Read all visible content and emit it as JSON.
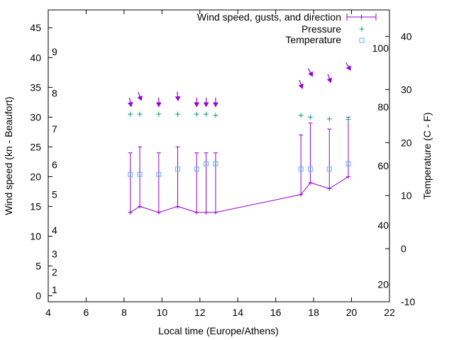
{
  "chart_data": {
    "type": "line",
    "xlabel": "Local time (Europe/Athens)",
    "ylabel": "Wind speed (kn - Beaufort)",
    "y2label": "Temperature (C - F)",
    "xlim": [
      4,
      22
    ],
    "ylim": [
      -1,
      48
    ],
    "y2lim": [
      -10,
      45
    ],
    "x_ticks": [
      "4",
      "6",
      "8",
      "10",
      "12",
      "14",
      "16",
      "18",
      "20",
      "22"
    ],
    "y_ticks": [
      "0",
      "5",
      "10",
      "15",
      "20",
      "25",
      "30",
      "35",
      "40",
      "45"
    ],
    "y2_ticks": [
      "-10",
      "0",
      "10",
      "20",
      "30",
      "40"
    ],
    "beaufort_labels": [
      {
        "label": "1",
        "knots": 1
      },
      {
        "label": "2",
        "knots": 4
      },
      {
        "label": "3",
        "knots": 7
      },
      {
        "label": "4",
        "knots": 11
      },
      {
        "label": "5",
        "knots": 17
      },
      {
        "label": "6",
        "knots": 22
      },
      {
        "label": "7",
        "knots": 28
      },
      {
        "label": "8",
        "knots": 34
      },
      {
        "label": "9",
        "knots": 41
      }
    ],
    "fahrenheit_labels": [
      {
        "label": "20",
        "celsius": -6.7
      },
      {
        "label": "40",
        "celsius": 4.4
      },
      {
        "label": "60",
        "celsius": 15.6
      },
      {
        "label": "80",
        "celsius": 26.7
      },
      {
        "label": "100",
        "celsius": 37.8
      }
    ],
    "legend": [
      "Wind speed, gusts, and direction",
      "Pressure",
      "Temperature"
    ],
    "legend_position": "top-right",
    "colors": {
      "wind": "#9400d3",
      "pressure": "#009e73",
      "temperature": "#56b4e9"
    },
    "series": [
      {
        "name": "Wind speed, gusts, and direction",
        "x": [
          8.33,
          8.83,
          9.83,
          10.83,
          11.83,
          12.33,
          12.83,
          17.33,
          17.83,
          18.83,
          19.83
        ],
        "speed": [
          14,
          15,
          14,
          15,
          14,
          14,
          14,
          17,
          19,
          18,
          20
        ],
        "gust": [
          24,
          25,
          24,
          25,
          24,
          24,
          24,
          27,
          29,
          28,
          30
        ],
        "direction_deg": [
          350,
          340,
          0,
          355,
          0,
          0,
          0,
          340,
          330,
          340,
          330
        ]
      },
      {
        "name": "Pressure",
        "x": [
          8.33,
          8.83,
          9.83,
          10.83,
          11.83,
          12.33,
          12.83,
          17.33,
          17.83,
          18.83,
          19.83
        ],
        "y": [
          30.5,
          30.5,
          30.5,
          30.5,
          30.5,
          30.5,
          30.3,
          30.3,
          30,
          29.7,
          29.6
        ]
      },
      {
        "name": "Temperature",
        "x": [
          8.33,
          8.83,
          9.83,
          10.83,
          11.83,
          12.33,
          12.83,
          17.33,
          17.83,
          18.83,
          19.83
        ],
        "y": [
          14,
          14,
          14,
          15,
          15,
          16,
          16,
          15,
          15,
          15,
          16
        ]
      }
    ]
  }
}
